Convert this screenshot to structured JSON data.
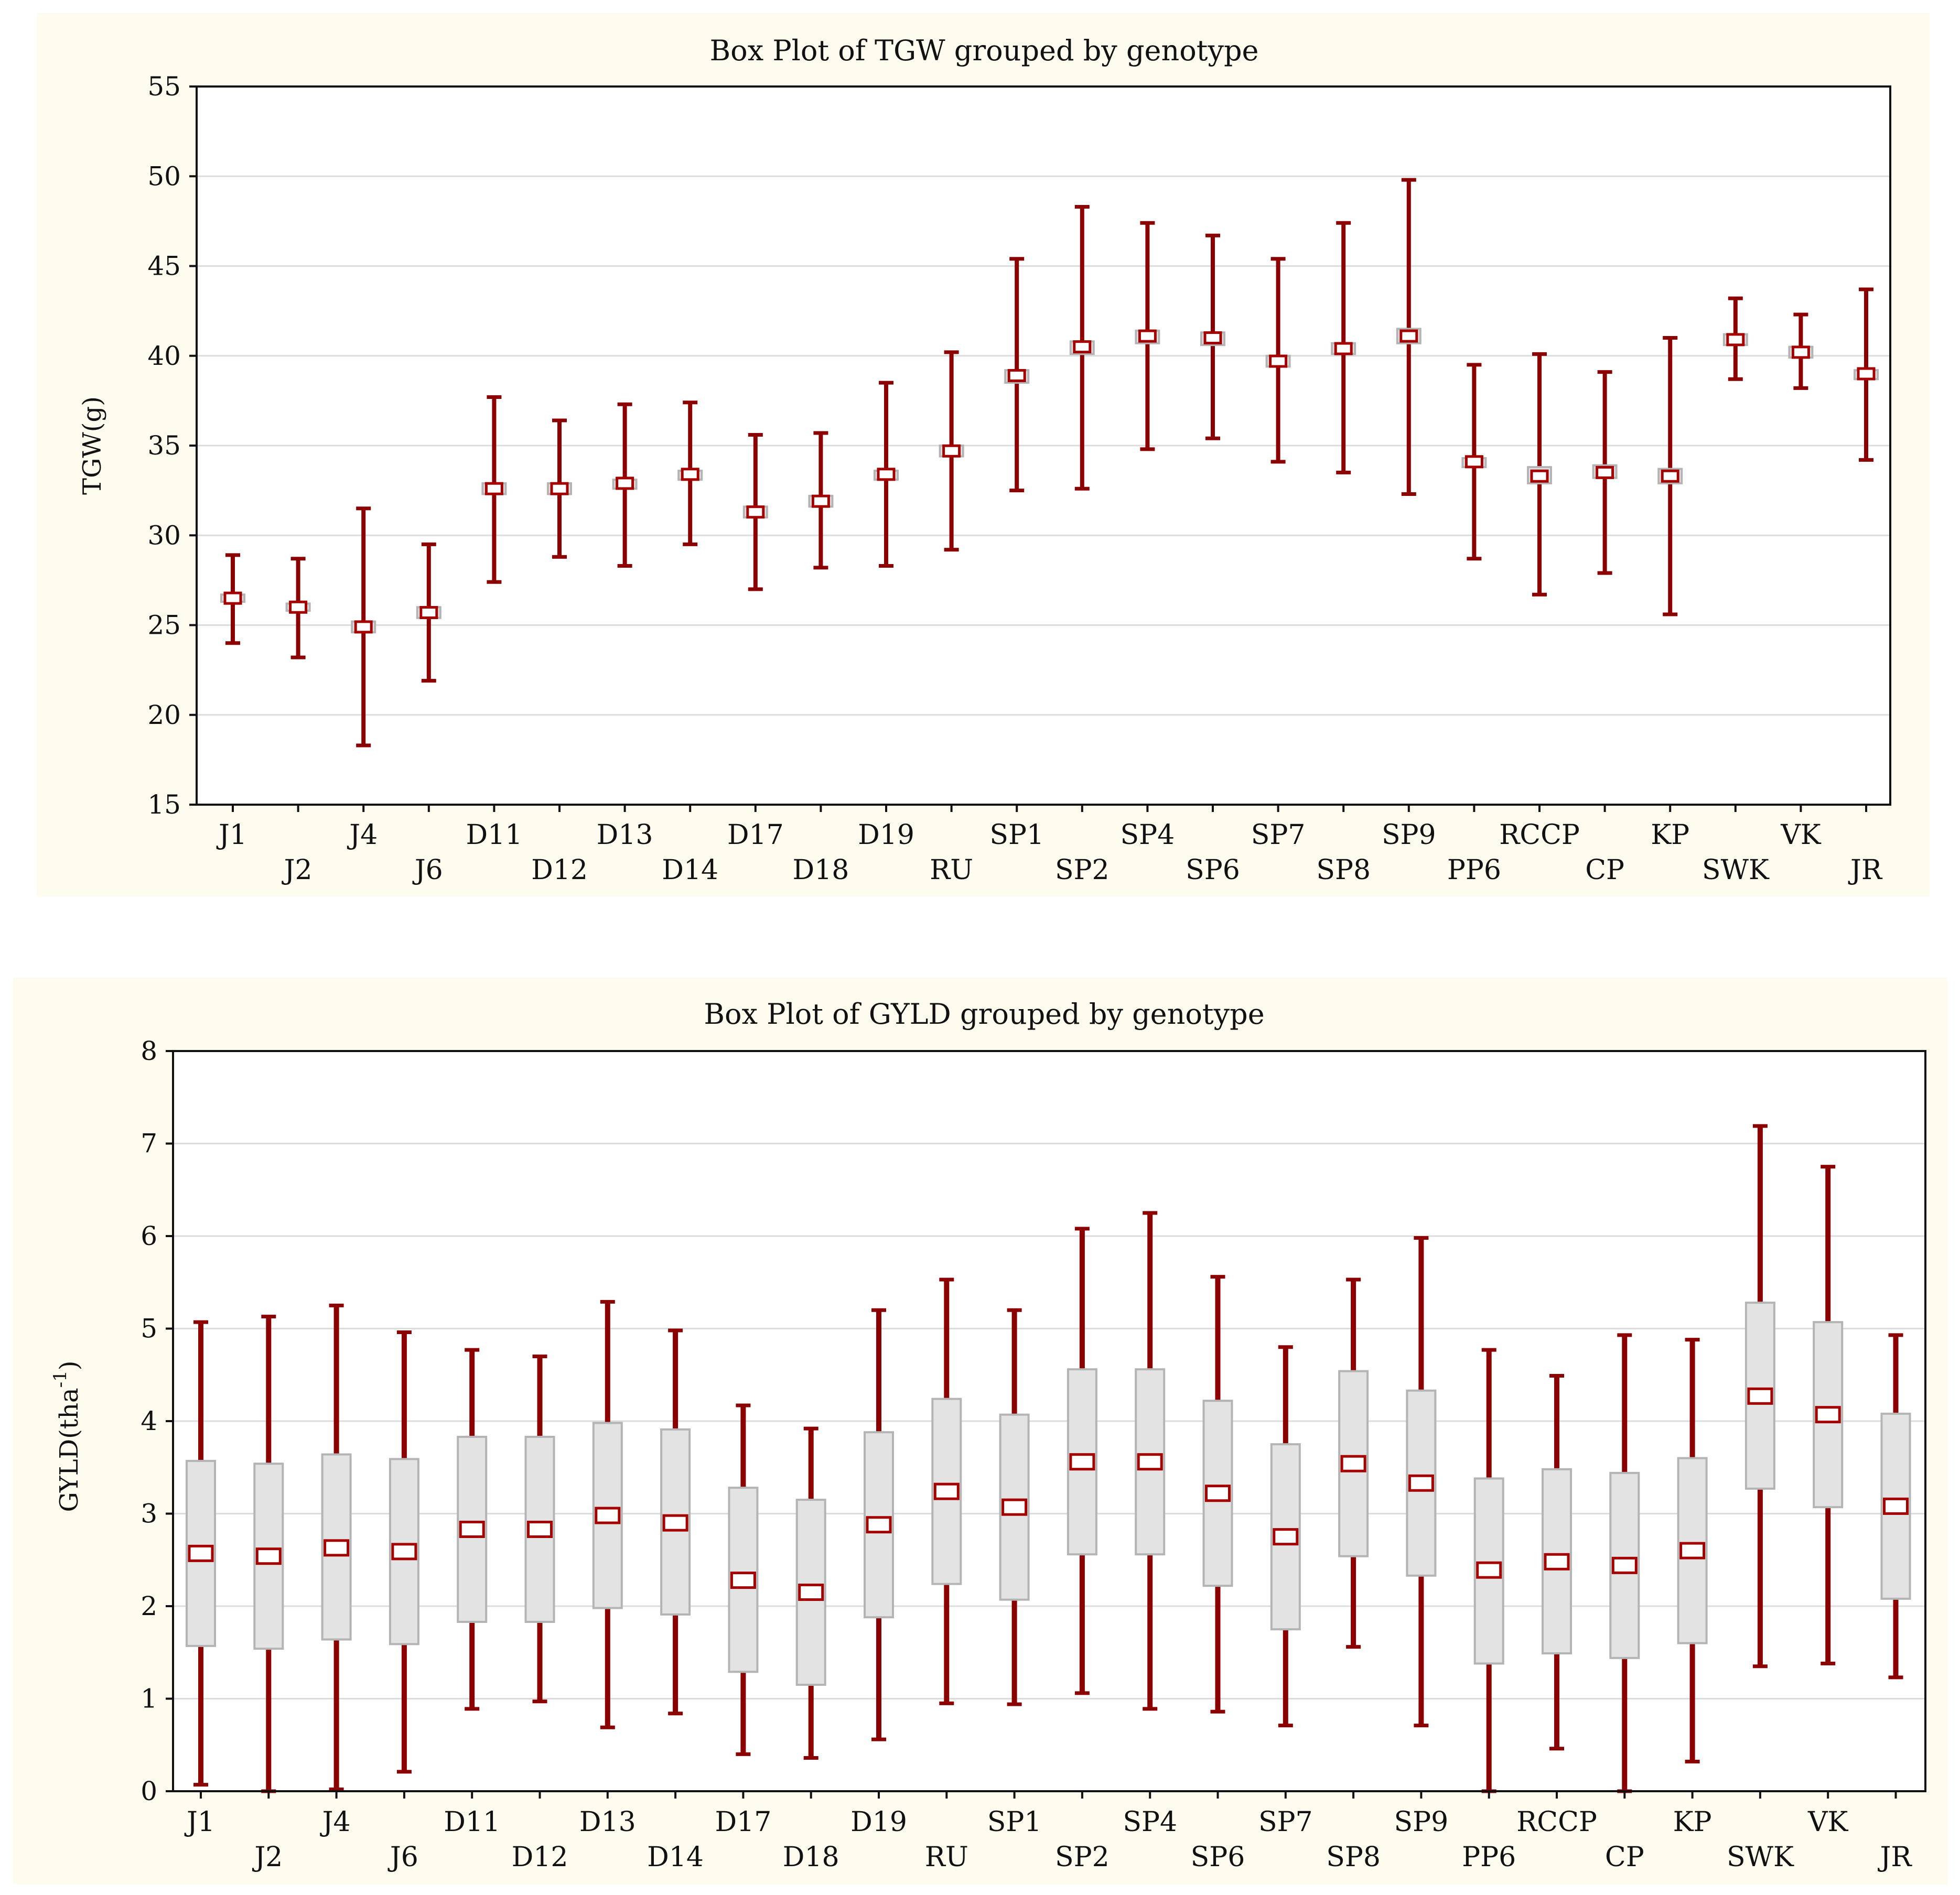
{
  "colors": {
    "panel_background": "#fefbef",
    "plot_background": "#ffffff",
    "gridline": "#dcdcdc",
    "whisker": "#8b0000",
    "box_fill": "#e3e3e3",
    "box_stroke": "#b4b4b4",
    "median_marker": "#a50000"
  },
  "chart_data": [
    {
      "type": "box",
      "title": "Box Plot of TGW grouped by genotype",
      "xlabel": "",
      "ylabel": "TGW(g)",
      "ylim": [
        15,
        55
      ],
      "yticks": [
        15,
        20,
        25,
        30,
        35,
        40,
        45,
        50,
        55
      ],
      "grid": true,
      "categories": [
        "J1",
        "J2",
        "J4",
        "J6",
        "D11",
        "D12",
        "D13",
        "D14",
        "D17",
        "D18",
        "D19",
        "RU",
        "SP1",
        "SP2",
        "SP4",
        "SP6",
        "SP7",
        "SP8",
        "SP9",
        "PP6",
        "RCCP",
        "CP",
        "KP",
        "SWK",
        "VK",
        "JR"
      ],
      "whisker_min": [
        24.0,
        23.2,
        18.3,
        21.9,
        27.4,
        28.8,
        28.3,
        29.5,
        27.0,
        28.2,
        28.3,
        29.2,
        32.5,
        32.6,
        34.8,
        35.4,
        34.1,
        33.5,
        32.3,
        28.7,
        26.7,
        27.9,
        25.6,
        38.7,
        38.2,
        34.2
      ],
      "box_low": [
        26.3,
        25.8,
        24.6,
        25.4,
        32.3,
        32.3,
        32.6,
        33.1,
        31.0,
        31.6,
        33.1,
        34.4,
        38.5,
        40.1,
        40.7,
        40.6,
        39.4,
        40.1,
        40.7,
        33.8,
        32.9,
        33.2,
        32.9,
        40.6,
        39.9,
        38.7
      ],
      "box_high": [
        26.7,
        26.2,
        25.2,
        26.0,
        32.9,
        32.9,
        33.1,
        33.6,
        31.6,
        32.2,
        33.6,
        35.0,
        39.2,
        40.8,
        41.4,
        41.3,
        40.0,
        40.7,
        41.5,
        34.3,
        33.8,
        33.9,
        33.7,
        41.2,
        40.5,
        39.2
      ],
      "median": [
        26.5,
        26.0,
        24.9,
        25.7,
        32.6,
        32.6,
        32.9,
        33.4,
        31.3,
        31.9,
        33.4,
        34.7,
        38.9,
        40.5,
        41.1,
        41.0,
        39.7,
        40.4,
        41.1,
        34.1,
        33.3,
        33.5,
        33.3,
        40.9,
        40.2,
        39.0
      ],
      "whisker_max": [
        28.9,
        28.7,
        31.5,
        29.5,
        37.7,
        36.4,
        37.3,
        37.4,
        35.6,
        35.7,
        38.5,
        40.2,
        45.4,
        48.3,
        47.4,
        46.7,
        45.4,
        47.4,
        49.8,
        39.5,
        40.1,
        39.1,
        41.0,
        43.2,
        42.3,
        43.7
      ]
    },
    {
      "type": "box",
      "title": "Box Plot of GYLD grouped by genotype",
      "xlabel": "",
      "ylabel": "GYLD(tha",
      "ylabel_superscript": "-1",
      "ylabel_suffix": ")",
      "ylim": [
        0,
        8
      ],
      "yticks": [
        0,
        1,
        2,
        3,
        4,
        5,
        6,
        7,
        8
      ],
      "grid": true,
      "categories": [
        "J1",
        "J2",
        "J4",
        "J6",
        "D11",
        "D12",
        "D13",
        "D14",
        "D17",
        "D18",
        "D19",
        "RU",
        "SP1",
        "SP2",
        "SP4",
        "SP6",
        "SP7",
        "SP8",
        "SP9",
        "PP6",
        "RCCP",
        "CP",
        "KP",
        "SWK",
        "VK",
        "JR"
      ],
      "whisker_min": [
        0.07,
        0.0,
        0.02,
        0.21,
        0.89,
        0.97,
        0.69,
        0.84,
        0.4,
        0.36,
        0.56,
        0.95,
        0.94,
        1.06,
        0.89,
        0.86,
        0.71,
        1.56,
        0.71,
        0.0,
        0.46,
        0.0,
        0.32,
        1.35,
        1.38,
        1.23
      ],
      "box_low": [
        1.57,
        1.54,
        1.64,
        1.59,
        1.83,
        1.83,
        1.98,
        1.91,
        1.29,
        1.15,
        1.88,
        2.24,
        2.07,
        2.56,
        2.56,
        2.22,
        1.75,
        2.54,
        2.33,
        1.38,
        1.49,
        1.44,
        1.6,
        3.27,
        3.07,
        2.08
      ],
      "median": [
        2.57,
        2.54,
        2.63,
        2.59,
        2.83,
        2.83,
        2.98,
        2.9,
        2.28,
        2.15,
        2.88,
        3.24,
        3.07,
        3.56,
        3.56,
        3.22,
        2.75,
        3.54,
        3.33,
        2.39,
        2.48,
        2.44,
        2.6,
        4.27,
        4.07,
        3.08
      ],
      "box_high": [
        3.57,
        3.54,
        3.64,
        3.59,
        3.83,
        3.83,
        3.98,
        3.91,
        3.28,
        3.15,
        3.88,
        4.24,
        4.07,
        4.56,
        4.56,
        4.22,
        3.75,
        4.54,
        4.33,
        3.38,
        3.48,
        3.44,
        3.6,
        5.28,
        5.07,
        4.08
      ],
      "whisker_max": [
        5.07,
        5.13,
        5.25,
        4.96,
        4.77,
        4.7,
        5.29,
        4.98,
        4.17,
        3.92,
        5.2,
        5.53,
        5.2,
        6.08,
        6.25,
        5.56,
        4.8,
        5.53,
        5.98,
        4.77,
        4.49,
        4.93,
        4.88,
        7.19,
        6.75,
        4.93
      ]
    }
  ]
}
